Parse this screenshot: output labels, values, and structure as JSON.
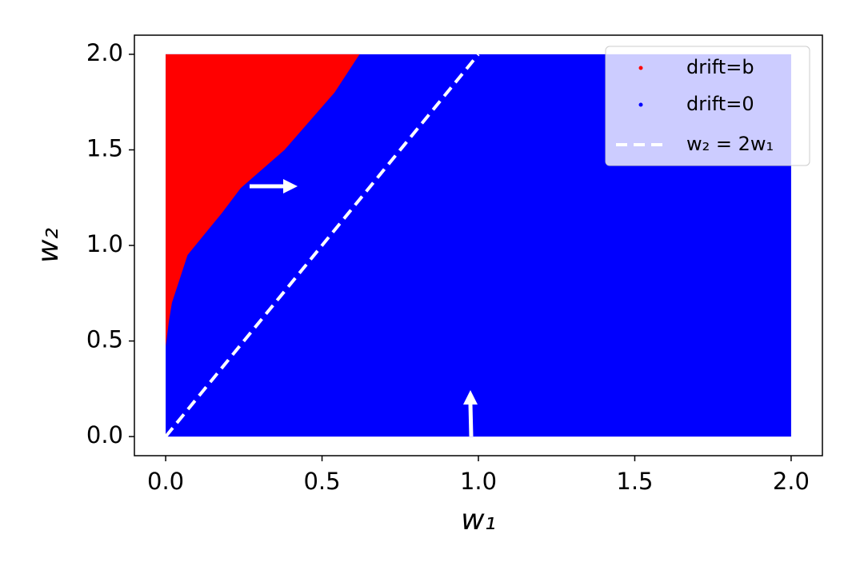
{
  "chart_data": {
    "type": "region",
    "xlabel": "w₁",
    "ylabel": "w₂",
    "xlim": [
      -0.1,
      2.1
    ],
    "ylim": [
      -0.1,
      2.1
    ],
    "xticks": [
      {
        "value": 0,
        "label": "0.0"
      },
      0.5,
      {
        "value": 1,
        "label": "1.0"
      },
      1.5,
      {
        "value": 2,
        "label": "2.0"
      }
    ],
    "yticks": [
      {
        "value": 0,
        "label": "0.0"
      },
      0.5,
      {
        "value": 1,
        "label": "1.0"
      },
      1.5,
      {
        "value": 2,
        "label": "2.0"
      }
    ],
    "legend": "upper right",
    "series": [
      {
        "name": "drift=0",
        "color": "#0000ff",
        "x": [
          0,
          2,
          2,
          0
        ],
        "y": [
          0,
          0,
          2,
          2
        ]
      },
      {
        "name": "drift=b",
        "color": "#ff0000",
        "x": [
          0,
          0,
          0.01,
          0.02,
          0.04,
          0.07,
          0.12,
          0.18,
          0.24,
          0.31,
          0.38,
          0.46,
          0.54,
          0.62
        ],
        "y": [
          2,
          0.47,
          0.6,
          0.7,
          0.8,
          0.95,
          1.05,
          1.17,
          1.3,
          1.4,
          1.5,
          1.65,
          1.8,
          2
        ]
      },
      {
        "name": "w₂ = 2w₁",
        "color": "#ffffff",
        "style": "dashed",
        "x": [
          0,
          1
        ],
        "y": [
          0,
          2
        ]
      }
    ],
    "legend_order": [
      1,
      0,
      2
    ]
  }
}
